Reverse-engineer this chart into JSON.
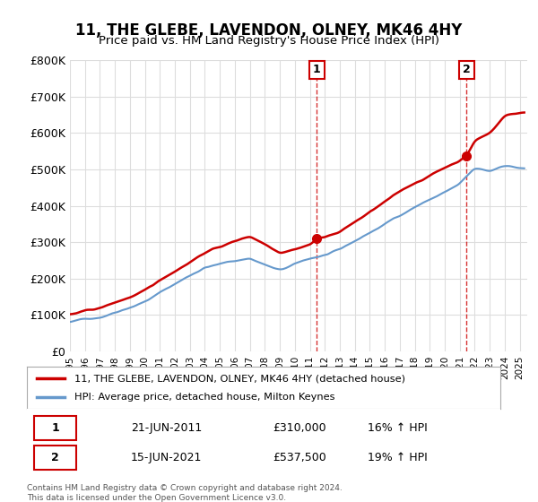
{
  "title": "11, THE GLEBE, LAVENDON, OLNEY, MK46 4HY",
  "subtitle": "Price paid vs. HM Land Registry's House Price Index (HPI)",
  "ylabel": "",
  "ylim": [
    0,
    800000
  ],
  "yticks": [
    0,
    100000,
    200000,
    300000,
    400000,
    500000,
    600000,
    700000,
    800000
  ],
  "xlim_start": 1995.0,
  "xlim_end": 2025.5,
  "sale1": {
    "date": 2011.47,
    "price": 310000,
    "label": "1",
    "pct": "16%",
    "direction": "↑"
  },
  "sale2": {
    "date": 2021.46,
    "price": 537500,
    "label": "2",
    "pct": "19%",
    "direction": "↑"
  },
  "legend_property": "11, THE GLEBE, LAVENDON, OLNEY, MK46 4HY (detached house)",
  "legend_hpi": "HPI: Average price, detached house, Milton Keynes",
  "table_rows": [
    {
      "num": "1",
      "date": "21-JUN-2011",
      "price": "£310,000",
      "pct": "16% ↑ HPI"
    },
    {
      "num": "2",
      "date": "15-JUN-2021",
      "price": "£537,500",
      "pct": "19% ↑ HPI"
    }
  ],
  "footnote": "Contains HM Land Registry data © Crown copyright and database right 2024.\nThis data is licensed under the Open Government Licence v3.0.",
  "property_color": "#cc0000",
  "hpi_color": "#6699cc",
  "dashed_line_color": "#cc0000",
  "background_color": "#ffffff",
  "grid_color": "#dddddd"
}
